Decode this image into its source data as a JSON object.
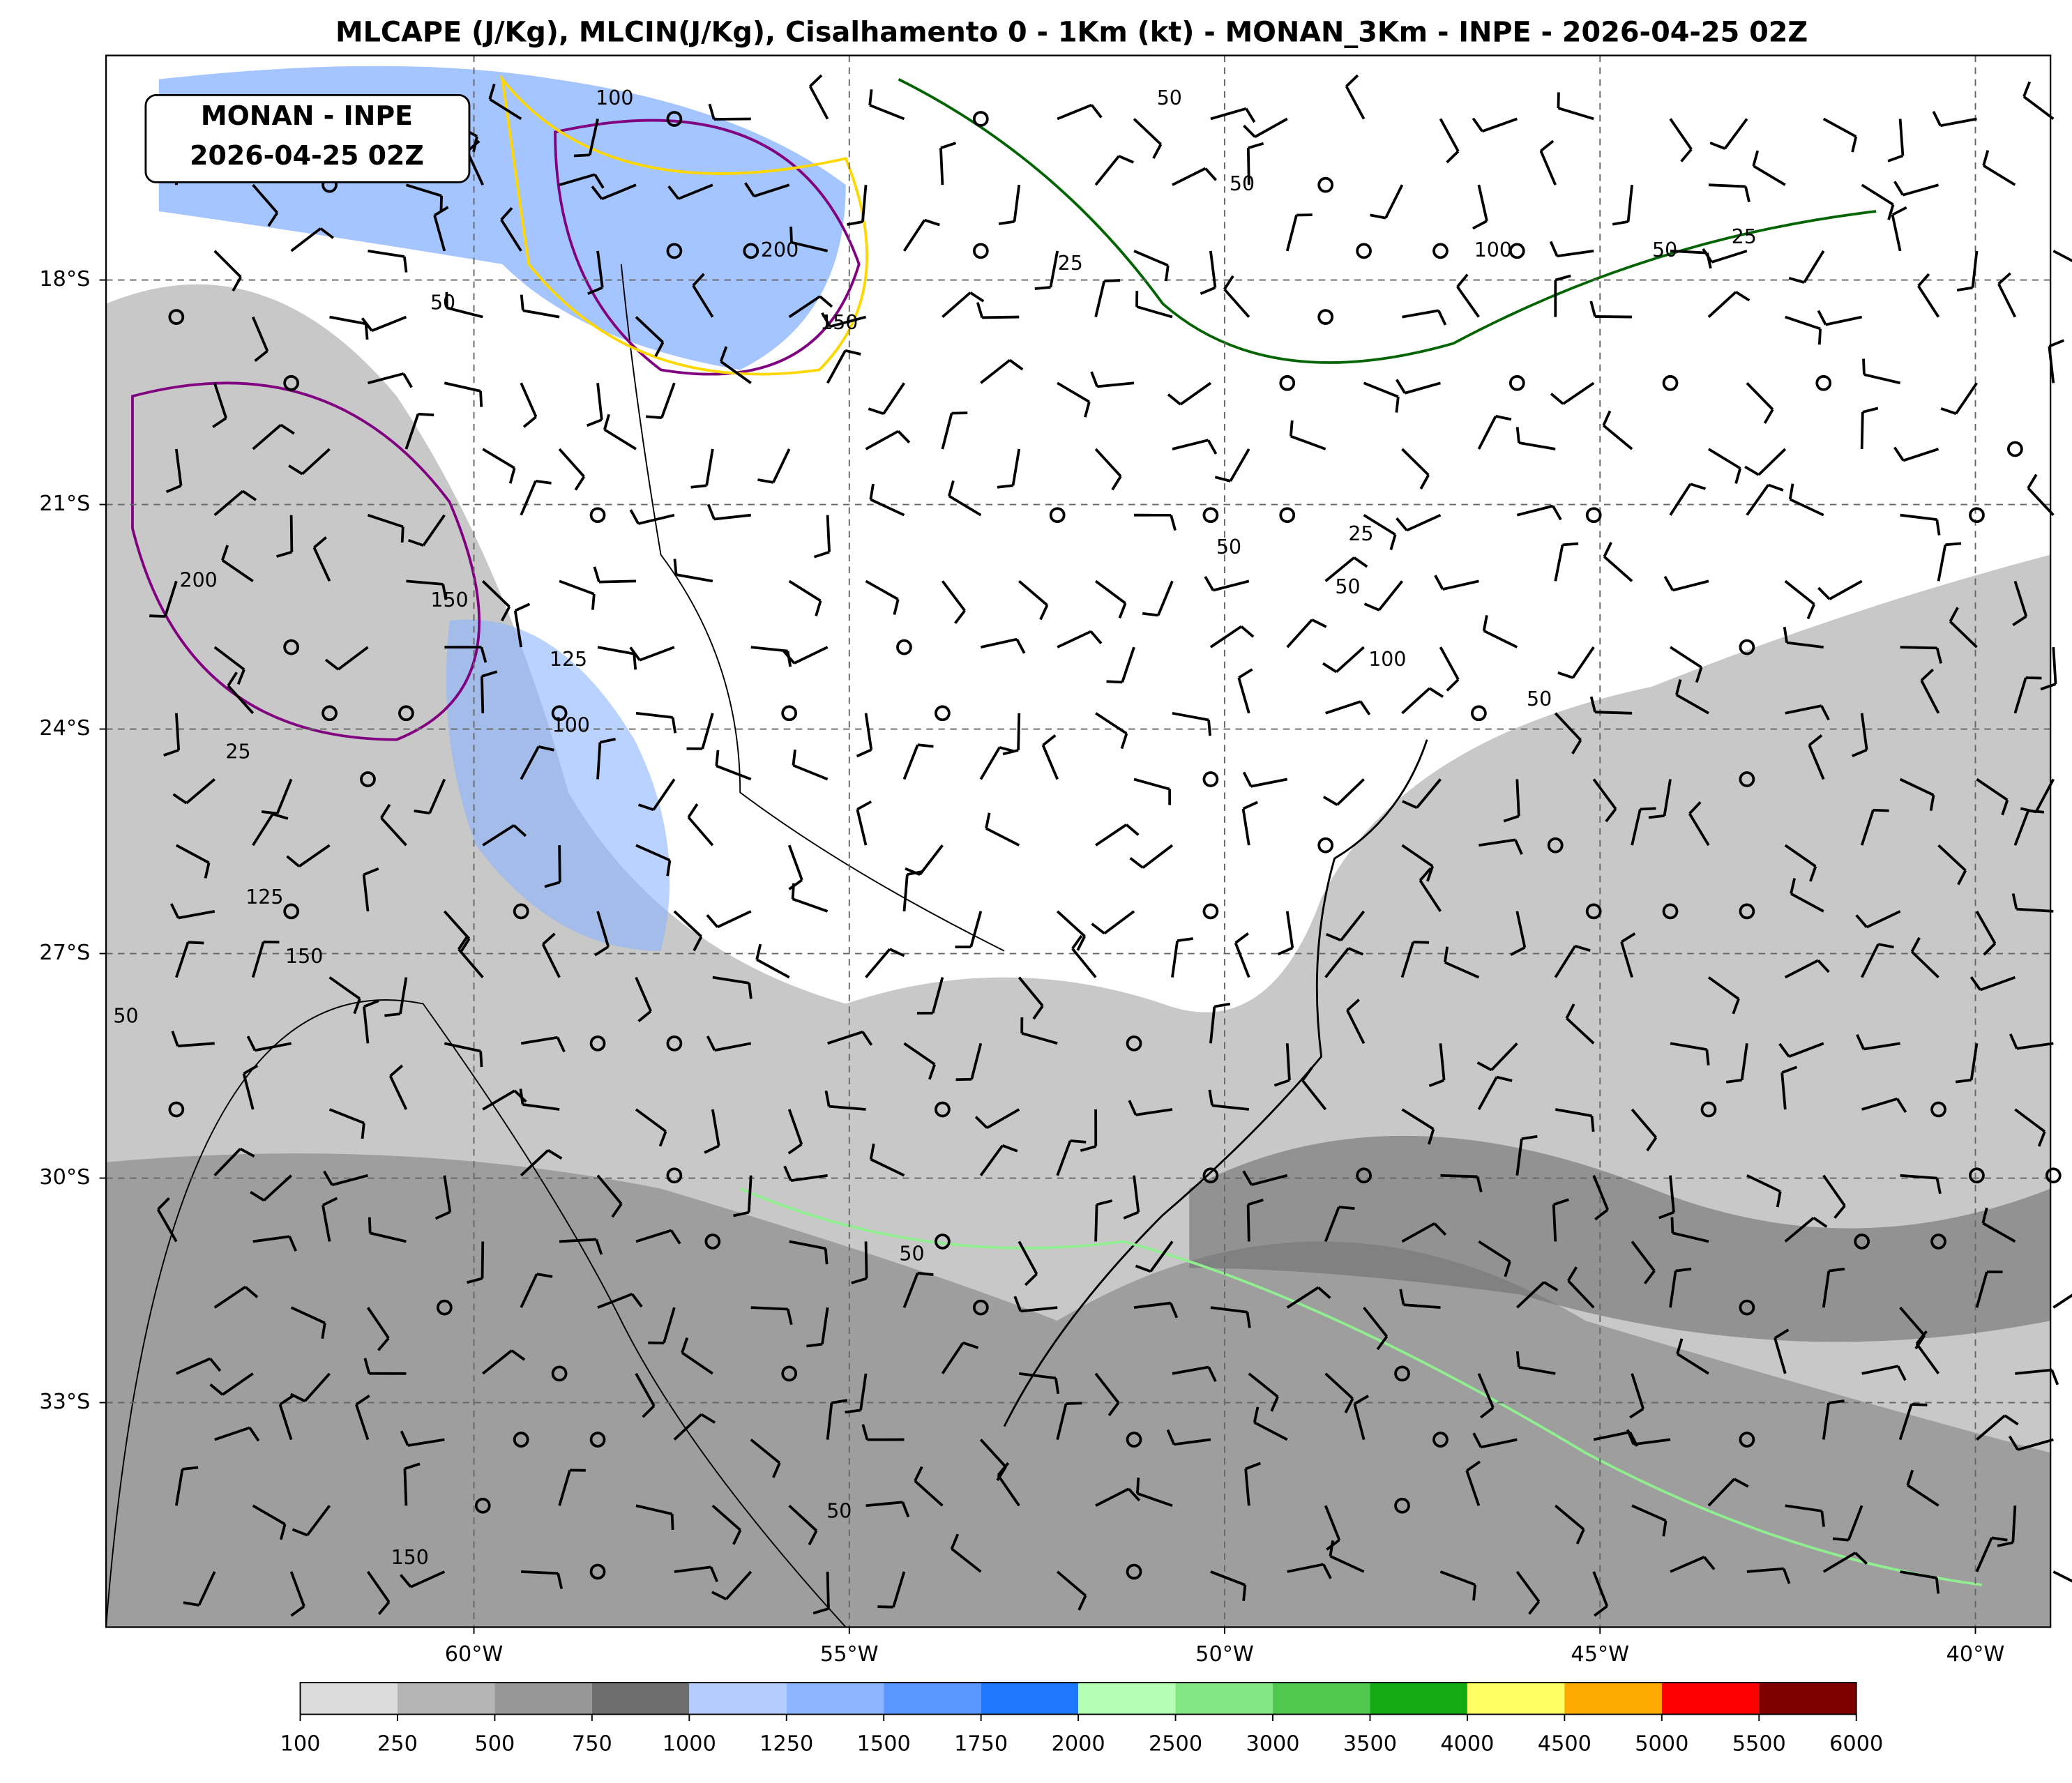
{
  "title": "MLCAPE (J/Kg), MLCIN(J/Kg), Cisalhamento 0 - 1Km (kt) - MONAN_3Km - INPE - 2026-04-25 02Z",
  "annotation": [
    "MONAN - INPE",
    "2026-04-25 02Z"
  ],
  "map": {
    "lon_range": [
      -64.9,
      -39.0
    ],
    "lat_range": [
      -36.0,
      -15.0
    ],
    "lon_ticks": [
      {
        "value": -60,
        "label": "60°W"
      },
      {
        "value": -55,
        "label": "55°W"
      },
      {
        "value": -50,
        "label": "50°W"
      },
      {
        "value": -45,
        "label": "45°W"
      },
      {
        "value": -40,
        "label": "40°W"
      }
    ],
    "lat_ticks": [
      {
        "value": -18,
        "label": "18°S"
      },
      {
        "value": -21,
        "label": "21°S"
      },
      {
        "value": -24,
        "label": "24°S"
      },
      {
        "value": -27,
        "label": "27°S"
      },
      {
        "value": -30,
        "label": "30°S"
      },
      {
        "value": -33,
        "label": "33°S"
      }
    ],
    "contour_labels": [
      "50",
      "100",
      "50",
      "25",
      "50",
      "100",
      "200",
      "150",
      "200",
      "150",
      "100",
      "125",
      "50",
      "25",
      "150",
      "125",
      "50",
      "50",
      "100",
      "25",
      "50",
      "50",
      "25",
      "50",
      "150",
      "50"
    ]
  },
  "colorbar": {
    "levels": [
      100,
      250,
      500,
      750,
      1000,
      1250,
      1500,
      1750,
      2000,
      2500,
      3000,
      3500,
      4000,
      4500,
      5000,
      5500,
      6000
    ],
    "colors": [
      "#dcdcdc",
      "#b4b4b4",
      "#969696",
      "#6e6e6e",
      "#b4ccff",
      "#8cb4ff",
      "#5a96ff",
      "#1e78ff",
      "#b4ffb4",
      "#82e682",
      "#50c850",
      "#14aa14",
      "#ffff64",
      "#ffaa00",
      "#ff0000",
      "#800000"
    ]
  }
}
